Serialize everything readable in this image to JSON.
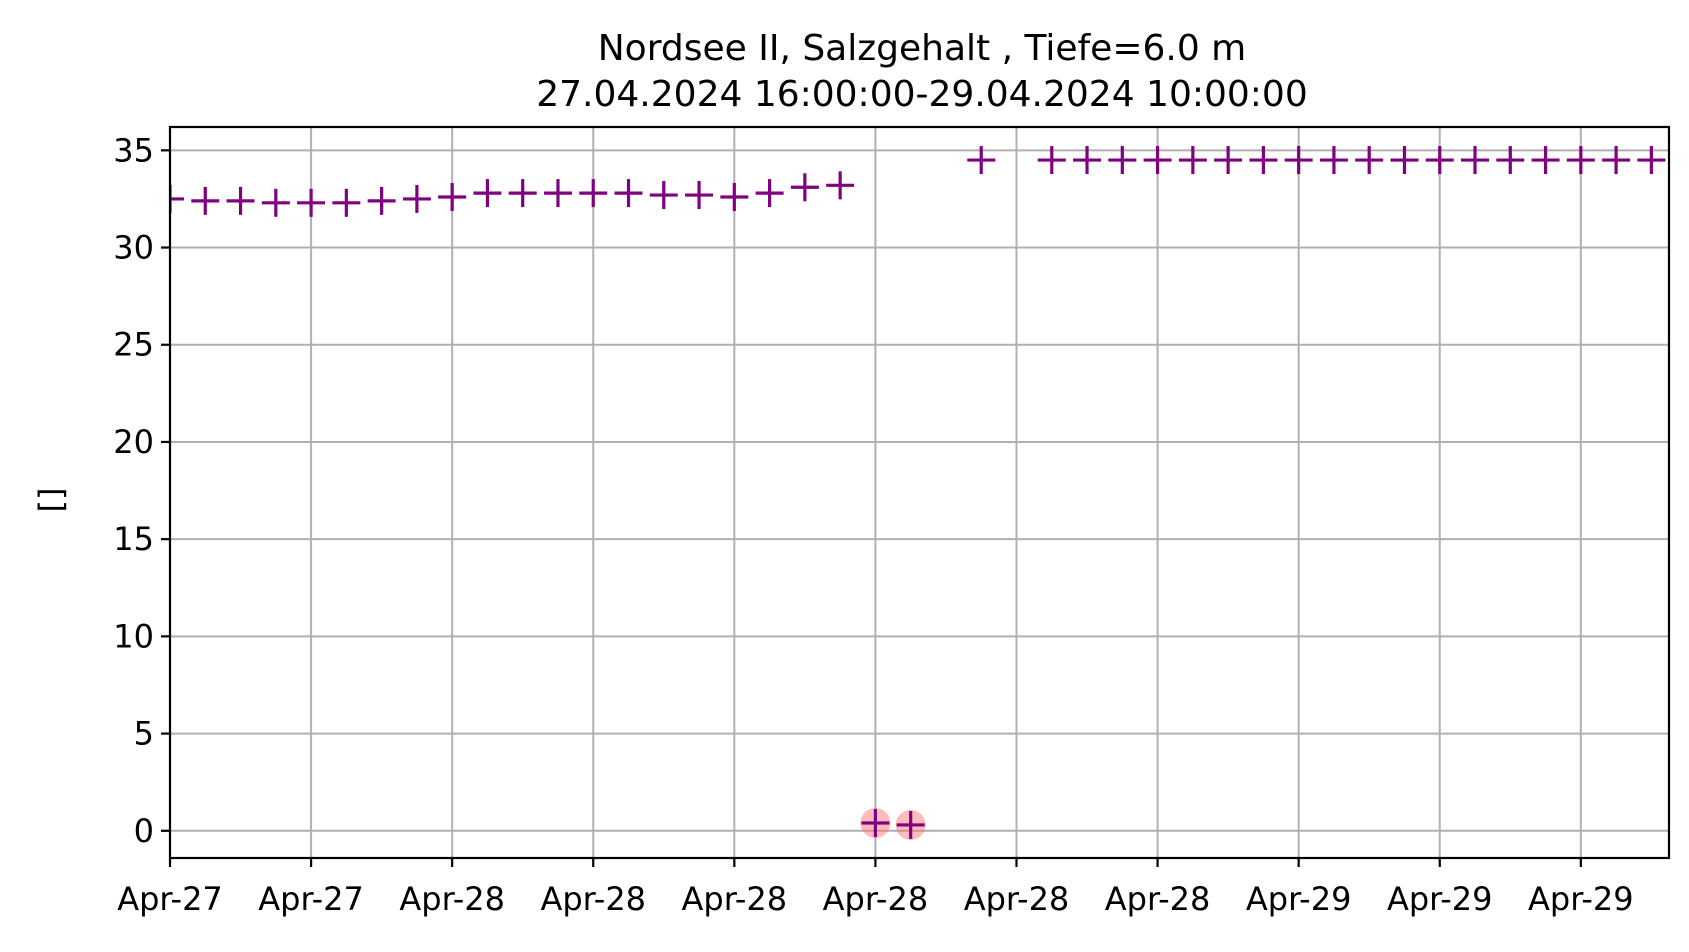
{
  "chart_data": {
    "type": "scatter",
    "title": "Nordsee II, Salzgehalt , Tiefe=6.0 m",
    "subtitle": "27.04.2024 16:00:00-29.04.2024 10:00:00",
    "xlabel": "",
    "ylabel": "[]",
    "xlim": [
      "2024-04-27 16:00",
      "2024-04-29 10:30"
    ],
    "ylim": [
      -1.4,
      36.2
    ],
    "yticks": [
      0,
      5,
      10,
      15,
      20,
      25,
      30,
      35
    ],
    "xticks": [
      {
        "t": "2024-04-27 16:00",
        "label": "Apr-27"
      },
      {
        "t": "2024-04-27 20:00",
        "label": "Apr-27"
      },
      {
        "t": "2024-04-28 00:00",
        "label": "Apr-28"
      },
      {
        "t": "2024-04-28 04:00",
        "label": "Apr-28"
      },
      {
        "t": "2024-04-28 08:00",
        "label": "Apr-28"
      },
      {
        "t": "2024-04-28 12:00",
        "label": "Apr-28"
      },
      {
        "t": "2024-04-28 16:00",
        "label": "Apr-28"
      },
      {
        "t": "2024-04-28 20:00",
        "label": "Apr-28"
      },
      {
        "t": "2024-04-29 00:00",
        "label": "Apr-29"
      },
      {
        "t": "2024-04-29 04:00",
        "label": "Apr-29"
      },
      {
        "t": "2024-04-29 08:00",
        "label": "Apr-29"
      }
    ],
    "grid": true,
    "marker": "+",
    "marker_color": "#800080",
    "flag_color": "#ff6a6a",
    "series": [
      {
        "points": [
          {
            "t": "2024-04-27 16:00",
            "y": 32.5
          },
          {
            "t": "2024-04-27 17:00",
            "y": 32.4
          },
          {
            "t": "2024-04-27 18:00",
            "y": 32.4
          },
          {
            "t": "2024-04-27 19:00",
            "y": 32.3
          },
          {
            "t": "2024-04-27 20:00",
            "y": 32.3
          },
          {
            "t": "2024-04-27 21:00",
            "y": 32.3
          },
          {
            "t": "2024-04-27 22:00",
            "y": 32.4
          },
          {
            "t": "2024-04-27 23:00",
            "y": 32.5
          },
          {
            "t": "2024-04-28 00:00",
            "y": 32.6
          },
          {
            "t": "2024-04-28 01:00",
            "y": 32.8
          },
          {
            "t": "2024-04-28 02:00",
            "y": 32.8
          },
          {
            "t": "2024-04-28 03:00",
            "y": 32.8
          },
          {
            "t": "2024-04-28 04:00",
            "y": 32.8
          },
          {
            "t": "2024-04-28 05:00",
            "y": 32.8
          },
          {
            "t": "2024-04-28 06:00",
            "y": 32.7
          },
          {
            "t": "2024-04-28 07:00",
            "y": 32.7
          },
          {
            "t": "2024-04-28 08:00",
            "y": 32.6
          },
          {
            "t": "2024-04-28 09:00",
            "y": 32.8
          },
          {
            "t": "2024-04-28 10:00",
            "y": 33.1
          },
          {
            "t": "2024-04-28 11:00",
            "y": 33.2
          },
          {
            "t": "2024-04-28 12:00",
            "y": 0.4,
            "flagged": true
          },
          {
            "t": "2024-04-28 13:00",
            "y": 0.3,
            "flagged": true
          },
          {
            "t": "2024-04-28 15:00",
            "y": 34.5
          },
          {
            "t": "2024-04-28 17:00",
            "y": 34.5
          },
          {
            "t": "2024-04-28 18:00",
            "y": 34.5
          },
          {
            "t": "2024-04-28 19:00",
            "y": 34.5
          },
          {
            "t": "2024-04-28 20:00",
            "y": 34.5
          },
          {
            "t": "2024-04-28 21:00",
            "y": 34.5
          },
          {
            "t": "2024-04-28 22:00",
            "y": 34.5
          },
          {
            "t": "2024-04-28 23:00",
            "y": 34.5
          },
          {
            "t": "2024-04-29 00:00",
            "y": 34.5
          },
          {
            "t": "2024-04-29 01:00",
            "y": 34.5
          },
          {
            "t": "2024-04-29 02:00",
            "y": 34.5
          },
          {
            "t": "2024-04-29 03:00",
            "y": 34.5
          },
          {
            "t": "2024-04-29 04:00",
            "y": 34.5
          },
          {
            "t": "2024-04-29 05:00",
            "y": 34.5
          },
          {
            "t": "2024-04-29 06:00",
            "y": 34.5
          },
          {
            "t": "2024-04-29 07:00",
            "y": 34.5
          },
          {
            "t": "2024-04-29 08:00",
            "y": 34.5
          },
          {
            "t": "2024-04-29 09:00",
            "y": 34.5
          },
          {
            "t": "2024-04-29 10:00",
            "y": 34.5
          }
        ]
      }
    ]
  }
}
